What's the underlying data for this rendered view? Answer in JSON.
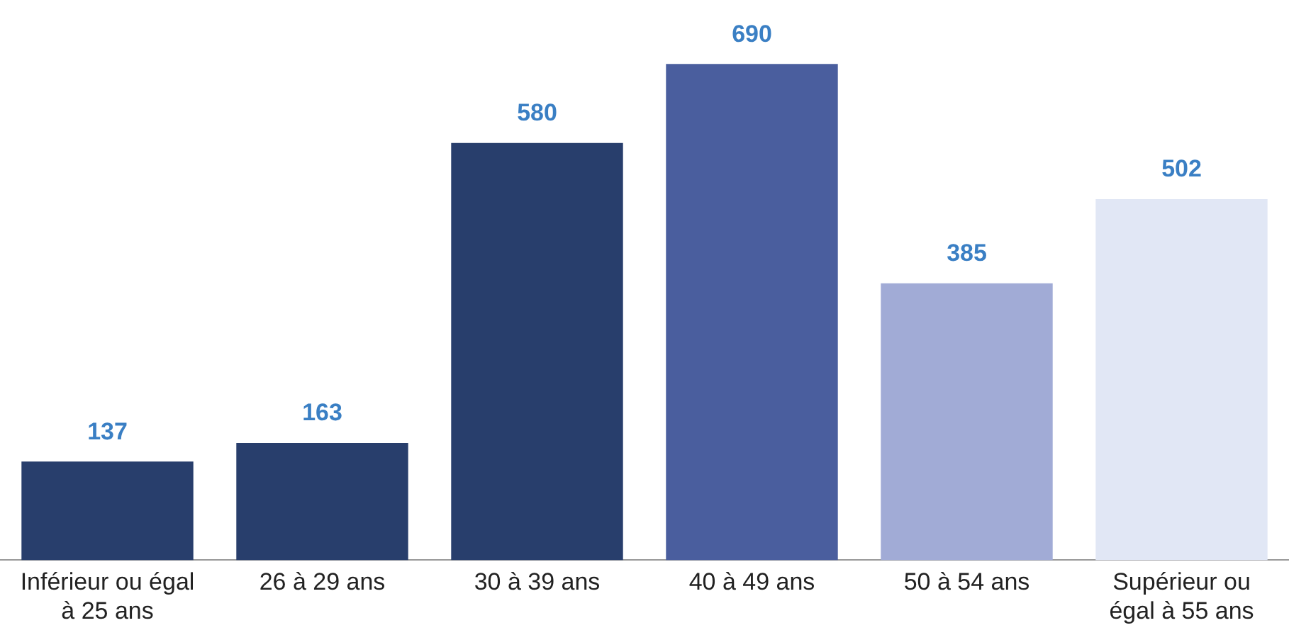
{
  "chart_data": {
    "type": "bar",
    "categories": [
      "Inférieur ou égal à 25 ans",
      "26 à 29 ans",
      "30 à 39 ans",
      "40 à 49 ans",
      "50 à 54 ans",
      "Supérieur ou égal à 55 ans"
    ],
    "values": [
      137,
      163,
      580,
      690,
      385,
      502
    ],
    "colors": [
      "#283e6c",
      "#283e6c",
      "#283e6c",
      "#4a5e9e",
      "#a1abd6",
      "#e1e7f5"
    ],
    "data_labels": true,
    "grid": false,
    "legend": false
  }
}
